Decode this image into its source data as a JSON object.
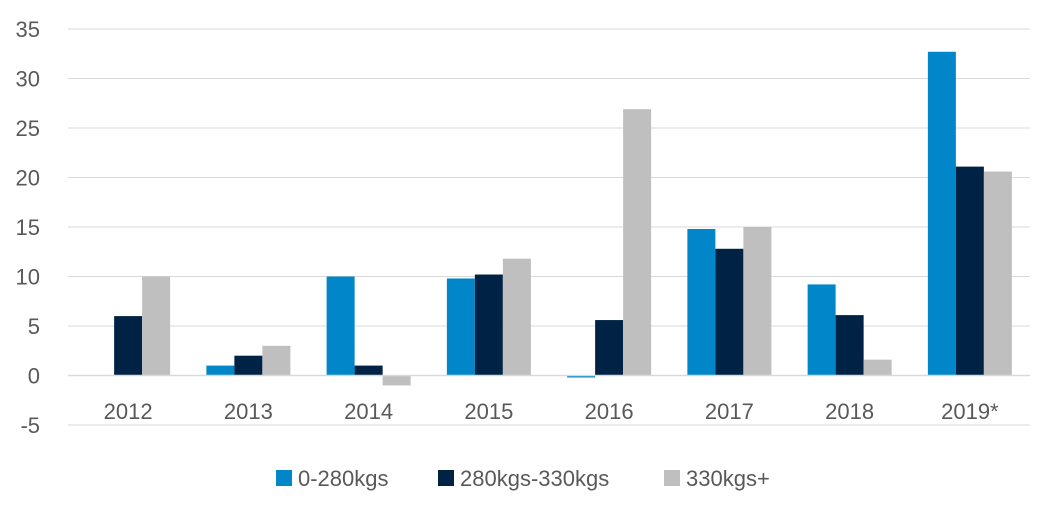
{
  "chart_data": {
    "type": "bar",
    "categories": [
      "2012",
      "2013",
      "2014",
      "2015",
      "2016",
      "2017",
      "2018",
      "2019*"
    ],
    "series": [
      {
        "name": "0-280kgs",
        "color": "#0086C9",
        "values": [
          0,
          1,
          10,
          9.8,
          -0.2,
          14.8,
          9.2,
          32.7
        ]
      },
      {
        "name": "280kgs-330kgs",
        "color": "#002244",
        "values": [
          6,
          2,
          1,
          10.2,
          5.6,
          12.8,
          6.1,
          21.1
        ]
      },
      {
        "name": "330kgs+",
        "color": "#BFBFBF",
        "values": [
          10,
          3,
          -1,
          11.8,
          26.9,
          15,
          1.6,
          20.6
        ]
      }
    ],
    "y_ticks": [
      "35",
      "30",
      "25",
      "20",
      "15",
      "10",
      "5",
      "0",
      "-5"
    ],
    "ylim": [
      -5,
      35
    ],
    "grid": true,
    "legend_position": "bottom"
  }
}
